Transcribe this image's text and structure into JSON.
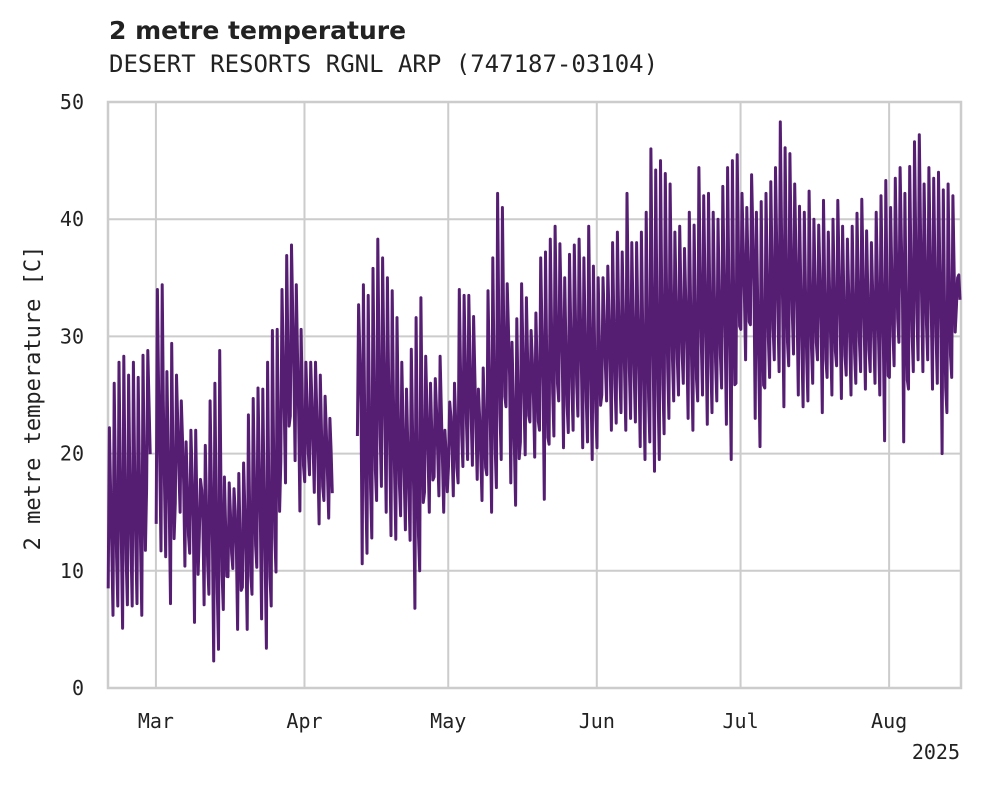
{
  "chart_data": {
    "type": "line",
    "title": "2 metre temperature",
    "subtitle": "DESERT RESORTS RGNL ARP (747187-03104)",
    "xlabel": "",
    "ylabel": "2 metre temperature [C]",
    "year_label": "2025",
    "xlim": [
      "2025-02-19",
      "2025-08-16"
    ],
    "ylim": [
      0,
      50
    ],
    "x_ticks": [
      {
        "label": "Mar",
        "date": "2025-03-01"
      },
      {
        "label": "Apr",
        "date": "2025-04-01"
      },
      {
        "label": "May",
        "date": "2025-05-01"
      },
      {
        "label": "Jun",
        "date": "2025-06-01"
      },
      {
        "label": "Jul",
        "date": "2025-07-01"
      },
      {
        "label": "Aug",
        "date": "2025-08-01"
      }
    ],
    "y_ticks": [
      0,
      10,
      20,
      30,
      40,
      50
    ],
    "grid": true,
    "series": [
      {
        "color": "#561e72",
        "daily_min_max": [
          [
            "2025-02-19",
            8.5,
            22.2
          ],
          [
            "2025-02-20",
            6.2,
            26.0
          ],
          [
            "2025-02-21",
            7.0,
            27.8
          ],
          [
            "2025-02-22",
            5.1,
            28.3
          ],
          [
            "2025-02-23",
            7.1,
            26.7
          ],
          [
            "2025-02-24",
            7.0,
            27.8
          ],
          [
            "2025-02-25",
            7.2,
            26.5
          ],
          [
            "2025-02-26",
            6.2,
            28.4
          ],
          [
            "2025-02-27",
            17.0,
            28.8
          ],
          [
            "2025-02-28",
            null,
            null
          ],
          [
            "2025-03-01",
            14.0,
            34.0
          ],
          [
            "2025-03-02",
            11.7,
            34.4
          ],
          [
            "2025-03-03",
            11.2,
            27.0
          ],
          [
            "2025-03-04",
            7.2,
            29.4
          ],
          [
            "2025-03-05",
            15.8,
            26.7
          ],
          [
            "2025-03-06",
            15.0,
            24.5
          ],
          [
            "2025-03-07",
            10.4,
            21.0
          ],
          [
            "2025-03-08",
            11.5,
            22.0
          ],
          [
            "2025-03-09",
            5.6,
            22.0
          ],
          [
            "2025-03-10",
            13.0,
            17.8
          ],
          [
            "2025-03-11",
            7.1,
            20.7
          ],
          [
            "2025-03-12",
            8.0,
            24.5
          ],
          [
            "2025-03-13",
            2.3,
            26.0
          ],
          [
            "2025-03-14",
            3.3,
            28.8
          ],
          [
            "2025-03-15",
            6.7,
            18.0
          ],
          [
            "2025-03-16",
            9.5,
            17.5
          ],
          [
            "2025-03-17",
            10.2,
            17.0
          ],
          [
            "2025-03-18",
            5.0,
            18.3
          ],
          [
            "2025-03-19",
            8.6,
            19.2
          ],
          [
            "2025-03-20",
            5.0,
            23.3
          ],
          [
            "2025-03-21",
            8.0,
            24.7
          ],
          [
            "2025-03-22",
            10.3,
            25.6
          ],
          [
            "2025-03-23",
            5.9,
            25.5
          ],
          [
            "2025-03-24",
            3.4,
            27.8
          ],
          [
            "2025-03-25",
            7.0,
            30.5
          ],
          [
            "2025-03-26",
            9.9,
            30.6
          ],
          [
            "2025-03-27",
            19.3,
            34.0
          ],
          [
            "2025-03-28",
            17.5,
            36.9
          ],
          [
            "2025-03-29",
            23.2,
            37.8
          ],
          [
            "2025-03-30",
            19.4,
            34.4
          ],
          [
            "2025-03-31",
            15.1,
            30.6
          ],
          [
            "2025-04-01",
            17.6,
            27.8
          ],
          [
            "2025-04-02",
            18.2,
            27.8
          ],
          [
            "2025-04-03",
            16.7,
            27.8
          ],
          [
            "2025-04-04",
            14.0,
            26.7
          ],
          [
            "2025-04-05",
            16.0,
            24.9
          ],
          [
            "2025-04-06",
            14.5,
            23.0
          ],
          [
            "2025-04-07",
            null,
            null
          ],
          [
            "2025-04-08",
            null,
            null
          ],
          [
            "2025-04-09",
            null,
            null
          ],
          [
            "2025-04-10",
            null,
            null
          ],
          [
            "2025-04-11",
            null,
            null
          ],
          [
            "2025-04-12",
            21.5,
            32.7
          ],
          [
            "2025-04-13",
            10.6,
            34.4
          ],
          [
            "2025-04-14",
            11.5,
            33.5
          ],
          [
            "2025-04-15",
            12.8,
            35.8
          ],
          [
            "2025-04-16",
            16.0,
            38.3
          ],
          [
            "2025-04-17",
            17.2,
            36.7
          ],
          [
            "2025-04-18",
            15.0,
            35.0
          ],
          [
            "2025-04-19",
            13.0,
            33.9
          ],
          [
            "2025-04-20",
            12.7,
            31.6
          ],
          [
            "2025-04-21",
            14.7,
            27.8
          ],
          [
            "2025-04-22",
            13.5,
            25.5
          ],
          [
            "2025-04-23",
            12.6,
            28.9
          ],
          [
            "2025-04-24",
            6.8,
            31.6
          ],
          [
            "2025-04-25",
            10.0,
            33.3
          ],
          [
            "2025-04-26",
            16.7,
            28.3
          ],
          [
            "2025-04-27",
            15.0,
            26.0
          ],
          [
            "2025-04-28",
            18.0,
            26.4
          ],
          [
            "2025-04-29",
            16.4,
            28.3
          ],
          [
            "2025-04-30",
            15.0,
            22.0
          ],
          [
            "2025-05-01",
            18.9,
            24.4
          ],
          [
            "2025-05-02",
            16.4,
            26.0
          ],
          [
            "2025-05-03",
            17.5,
            34.0
          ],
          [
            "2025-05-04",
            18.9,
            33.5
          ],
          [
            "2025-05-05",
            19.5,
            33.5
          ],
          [
            "2025-05-06",
            19.0,
            31.7
          ],
          [
            "2025-05-07",
            17.8,
            25.5
          ],
          [
            "2025-05-08",
            16.0,
            27.3
          ],
          [
            "2025-05-09",
            18.2,
            33.9
          ],
          [
            "2025-05-10",
            15.0,
            36.7
          ],
          [
            "2025-05-11",
            17.1,
            42.2
          ],
          [
            "2025-05-12",
            19.5,
            41.0
          ],
          [
            "2025-05-13",
            24.0,
            34.5
          ],
          [
            "2025-05-14",
            17.5,
            29.5
          ],
          [
            "2025-05-15",
            15.6,
            31.5
          ],
          [
            "2025-05-16",
            21.0,
            34.5
          ],
          [
            "2025-05-17",
            19.9,
            33.3
          ],
          [
            "2025-05-18",
            22.7,
            30.5
          ],
          [
            "2025-05-19",
            19.7,
            32.0
          ],
          [
            "2025-05-20",
            22.0,
            36.7
          ],
          [
            "2025-05-21",
            16.1,
            37.2
          ],
          [
            "2025-05-22",
            20.8,
            38.3
          ],
          [
            "2025-05-23",
            21.5,
            39.4
          ],
          [
            "2025-05-24",
            24.5,
            37.9
          ],
          [
            "2025-05-25",
            20.5,
            35.0
          ],
          [
            "2025-05-26",
            21.8,
            37.0
          ],
          [
            "2025-05-27",
            22.0,
            37.8
          ],
          [
            "2025-05-28",
            23.2,
            38.3
          ],
          [
            "2025-05-29",
            20.5,
            36.7
          ],
          [
            "2025-05-30",
            21.0,
            39.4
          ],
          [
            "2025-05-31",
            19.5,
            36.0
          ],
          [
            "2025-06-01",
            20.5,
            35.0
          ],
          [
            "2025-06-02",
            25.0,
            35.0
          ],
          [
            "2025-06-03",
            24.5,
            36.0
          ],
          [
            "2025-06-04",
            22.0,
            38.0
          ],
          [
            "2025-06-05",
            22.6,
            38.9
          ],
          [
            "2025-06-06",
            23.5,
            37.2
          ],
          [
            "2025-06-07",
            22.0,
            42.2
          ],
          [
            "2025-06-08",
            23.0,
            38.0
          ],
          [
            "2025-06-09",
            22.7,
            38.0
          ],
          [
            "2025-06-10",
            20.6,
            38.9
          ],
          [
            "2025-06-11",
            19.5,
            40.6
          ],
          [
            "2025-06-12",
            21.0,
            46.0
          ],
          [
            "2025-06-13",
            18.5,
            44.2
          ],
          [
            "2025-06-14",
            19.5,
            45.0
          ],
          [
            "2025-06-15",
            21.7,
            43.9
          ],
          [
            "2025-06-16",
            23.0,
            43.0
          ],
          [
            "2025-06-17",
            24.5,
            38.9
          ],
          [
            "2025-06-18",
            25.0,
            39.4
          ],
          [
            "2025-06-19",
            26.0,
            37.5
          ],
          [
            "2025-06-20",
            23.0,
            40.6
          ],
          [
            "2025-06-21",
            22.0,
            39.5
          ],
          [
            "2025-06-22",
            24.5,
            44.4
          ],
          [
            "2025-06-23",
            25.0,
            42.0
          ],
          [
            "2025-06-24",
            22.5,
            42.2
          ],
          [
            "2025-06-25",
            23.5,
            40.6
          ],
          [
            "2025-06-26",
            24.5,
            40.0
          ],
          [
            "2025-06-27",
            25.6,
            42.8
          ],
          [
            "2025-06-28",
            22.5,
            44.4
          ],
          [
            "2025-06-29",
            19.5,
            45.0
          ],
          [
            "2025-06-30",
            26.0,
            45.5
          ],
          [
            "2025-07-01",
            30.6,
            42.2
          ],
          [
            "2025-07-02",
            28.0,
            41.0
          ],
          [
            "2025-07-03",
            31.0,
            43.8
          ],
          [
            "2025-07-04",
            23.0,
            40.6
          ],
          [
            "2025-07-05",
            20.6,
            41.5
          ],
          [
            "2025-07-06",
            25.6,
            42.2
          ],
          [
            "2025-07-07",
            26.5,
            43.2
          ],
          [
            "2025-07-08",
            28.0,
            44.4
          ],
          [
            "2025-07-09",
            27.0,
            48.3
          ],
          [
            "2025-07-10",
            24.0,
            46.1
          ],
          [
            "2025-07-11",
            27.5,
            45.6
          ],
          [
            "2025-07-12",
            28.5,
            43.0
          ],
          [
            "2025-07-13",
            25.0,
            41.1
          ],
          [
            "2025-07-14",
            24.0,
            40.6
          ],
          [
            "2025-07-15",
            24.5,
            42.4
          ],
          [
            "2025-07-16",
            26.0,
            40.0
          ],
          [
            "2025-07-17",
            28.0,
            39.5
          ],
          [
            "2025-07-18",
            23.5,
            41.6
          ],
          [
            "2025-07-19",
            26.5,
            38.9
          ],
          [
            "2025-07-20",
            25.0,
            40.0
          ],
          [
            "2025-07-21",
            27.5,
            41.6
          ],
          [
            "2025-07-22",
            24.7,
            39.4
          ],
          [
            "2025-07-23",
            26.7,
            38.3
          ],
          [
            "2025-07-24",
            25.0,
            39.4
          ],
          [
            "2025-07-25",
            26.0,
            40.5
          ],
          [
            "2025-07-26",
            27.0,
            41.7
          ],
          [
            "2025-07-27",
            25.5,
            39.0
          ],
          [
            "2025-07-28",
            27.0,
            38.0
          ],
          [
            "2025-07-29",
            26.0,
            40.6
          ],
          [
            "2025-07-30",
            25.0,
            42.0
          ],
          [
            "2025-07-31",
            21.1,
            43.3
          ],
          [
            "2025-08-01",
            26.5,
            41.0
          ],
          [
            "2025-08-02",
            27.5,
            43.5
          ],
          [
            "2025-08-03",
            29.5,
            44.4
          ],
          [
            "2025-08-04",
            21.0,
            42.2
          ],
          [
            "2025-08-05",
            25.5,
            44.5
          ],
          [
            "2025-08-06",
            27.0,
            46.6
          ],
          [
            "2025-08-07",
            28.0,
            47.2
          ],
          [
            "2025-08-08",
            27.0,
            43.0
          ],
          [
            "2025-08-09",
            28.0,
            44.4
          ],
          [
            "2025-08-10",
            25.5,
            43.5
          ],
          [
            "2025-08-11",
            26.0,
            44.0
          ],
          [
            "2025-08-12",
            20.0,
            42.5
          ],
          [
            "2025-08-13",
            23.5,
            43.0
          ],
          [
            "2025-08-14",
            26.5,
            42.0
          ],
          [
            "2025-08-15",
            32.5,
            35.0
          ]
        ]
      }
    ]
  }
}
